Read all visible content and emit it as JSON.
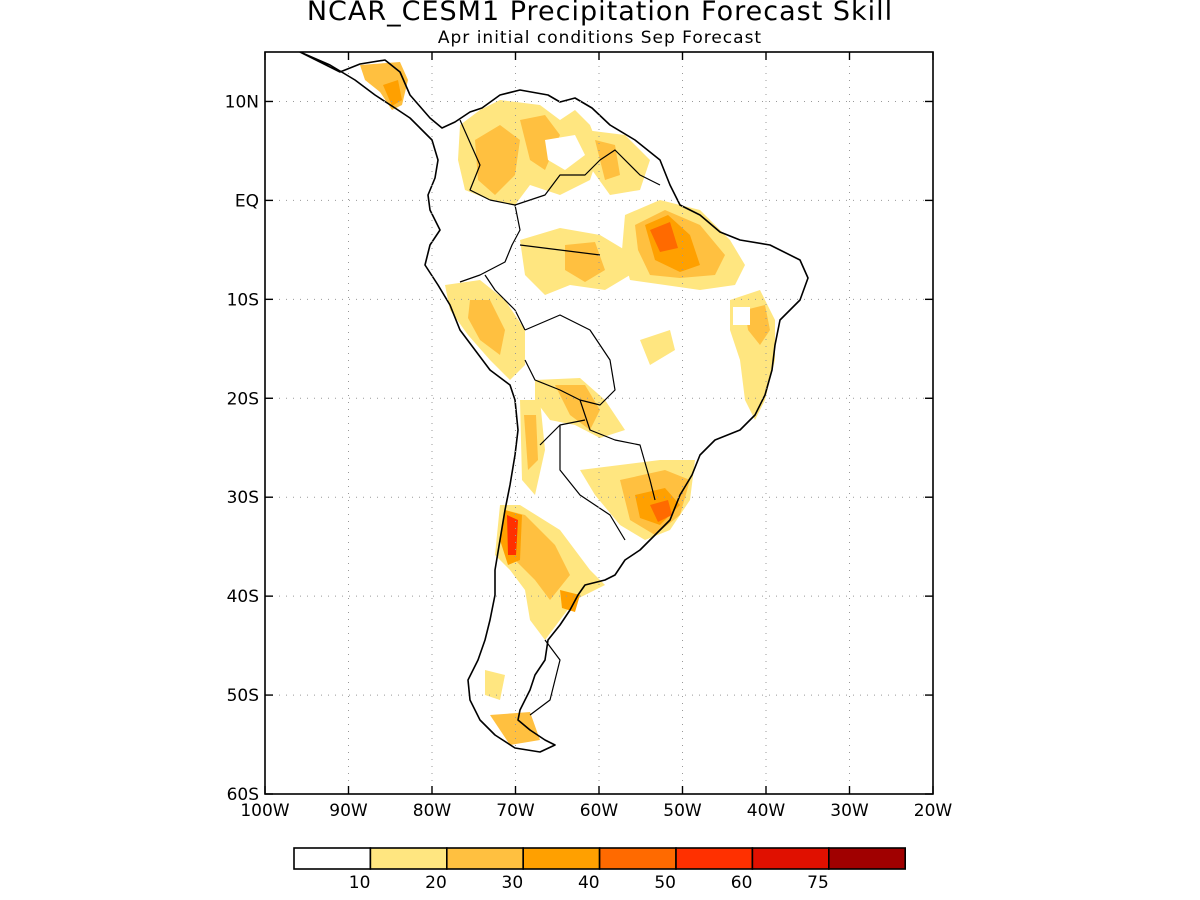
{
  "title": "NCAR_CESM1 Precipitation Forecast Skill",
  "subtitle": "Apr initial conditions  Sep Forecast",
  "axes": {
    "lon_ticks": [
      "100W",
      "90W",
      "80W",
      "70W",
      "60W",
      "50W",
      "40W",
      "30W",
      "20W"
    ],
    "lat_ticks": [
      "10N",
      "EQ",
      "10S",
      "20S",
      "30S",
      "40S",
      "50S",
      "60S"
    ],
    "lon_range": [
      -100,
      -20
    ],
    "lat_range": [
      -60,
      15
    ],
    "grid": "dotted"
  },
  "colorbar": {
    "labels": [
      "10",
      "20",
      "30",
      "40",
      "50",
      "60",
      "75"
    ],
    "colors": [
      "#ffffff",
      "#ffe680",
      "#ffc040",
      "#ffa000",
      "#ff6a00",
      "#ff3000",
      "#e01000",
      "#a00000"
    ]
  },
  "regions": [
    {
      "name": "central-america-patch",
      "level": 2
    },
    {
      "name": "colombia-venezuela-patch",
      "level": 2
    },
    {
      "name": "guyana-patch",
      "level": 2
    },
    {
      "name": "amazon-east-patch",
      "level": 4
    },
    {
      "name": "amazon-central-patch",
      "level": 3
    },
    {
      "name": "peru-patch",
      "level": 3
    },
    {
      "name": "bolivia-patch",
      "level": 2
    },
    {
      "name": "northeast-brazil-patch",
      "level": 2
    },
    {
      "name": "southern-brazil-patch",
      "level": 4
    },
    {
      "name": "central-chile-patch",
      "level": 5
    },
    {
      "name": "patagonia-patch",
      "level": 3
    }
  ]
}
